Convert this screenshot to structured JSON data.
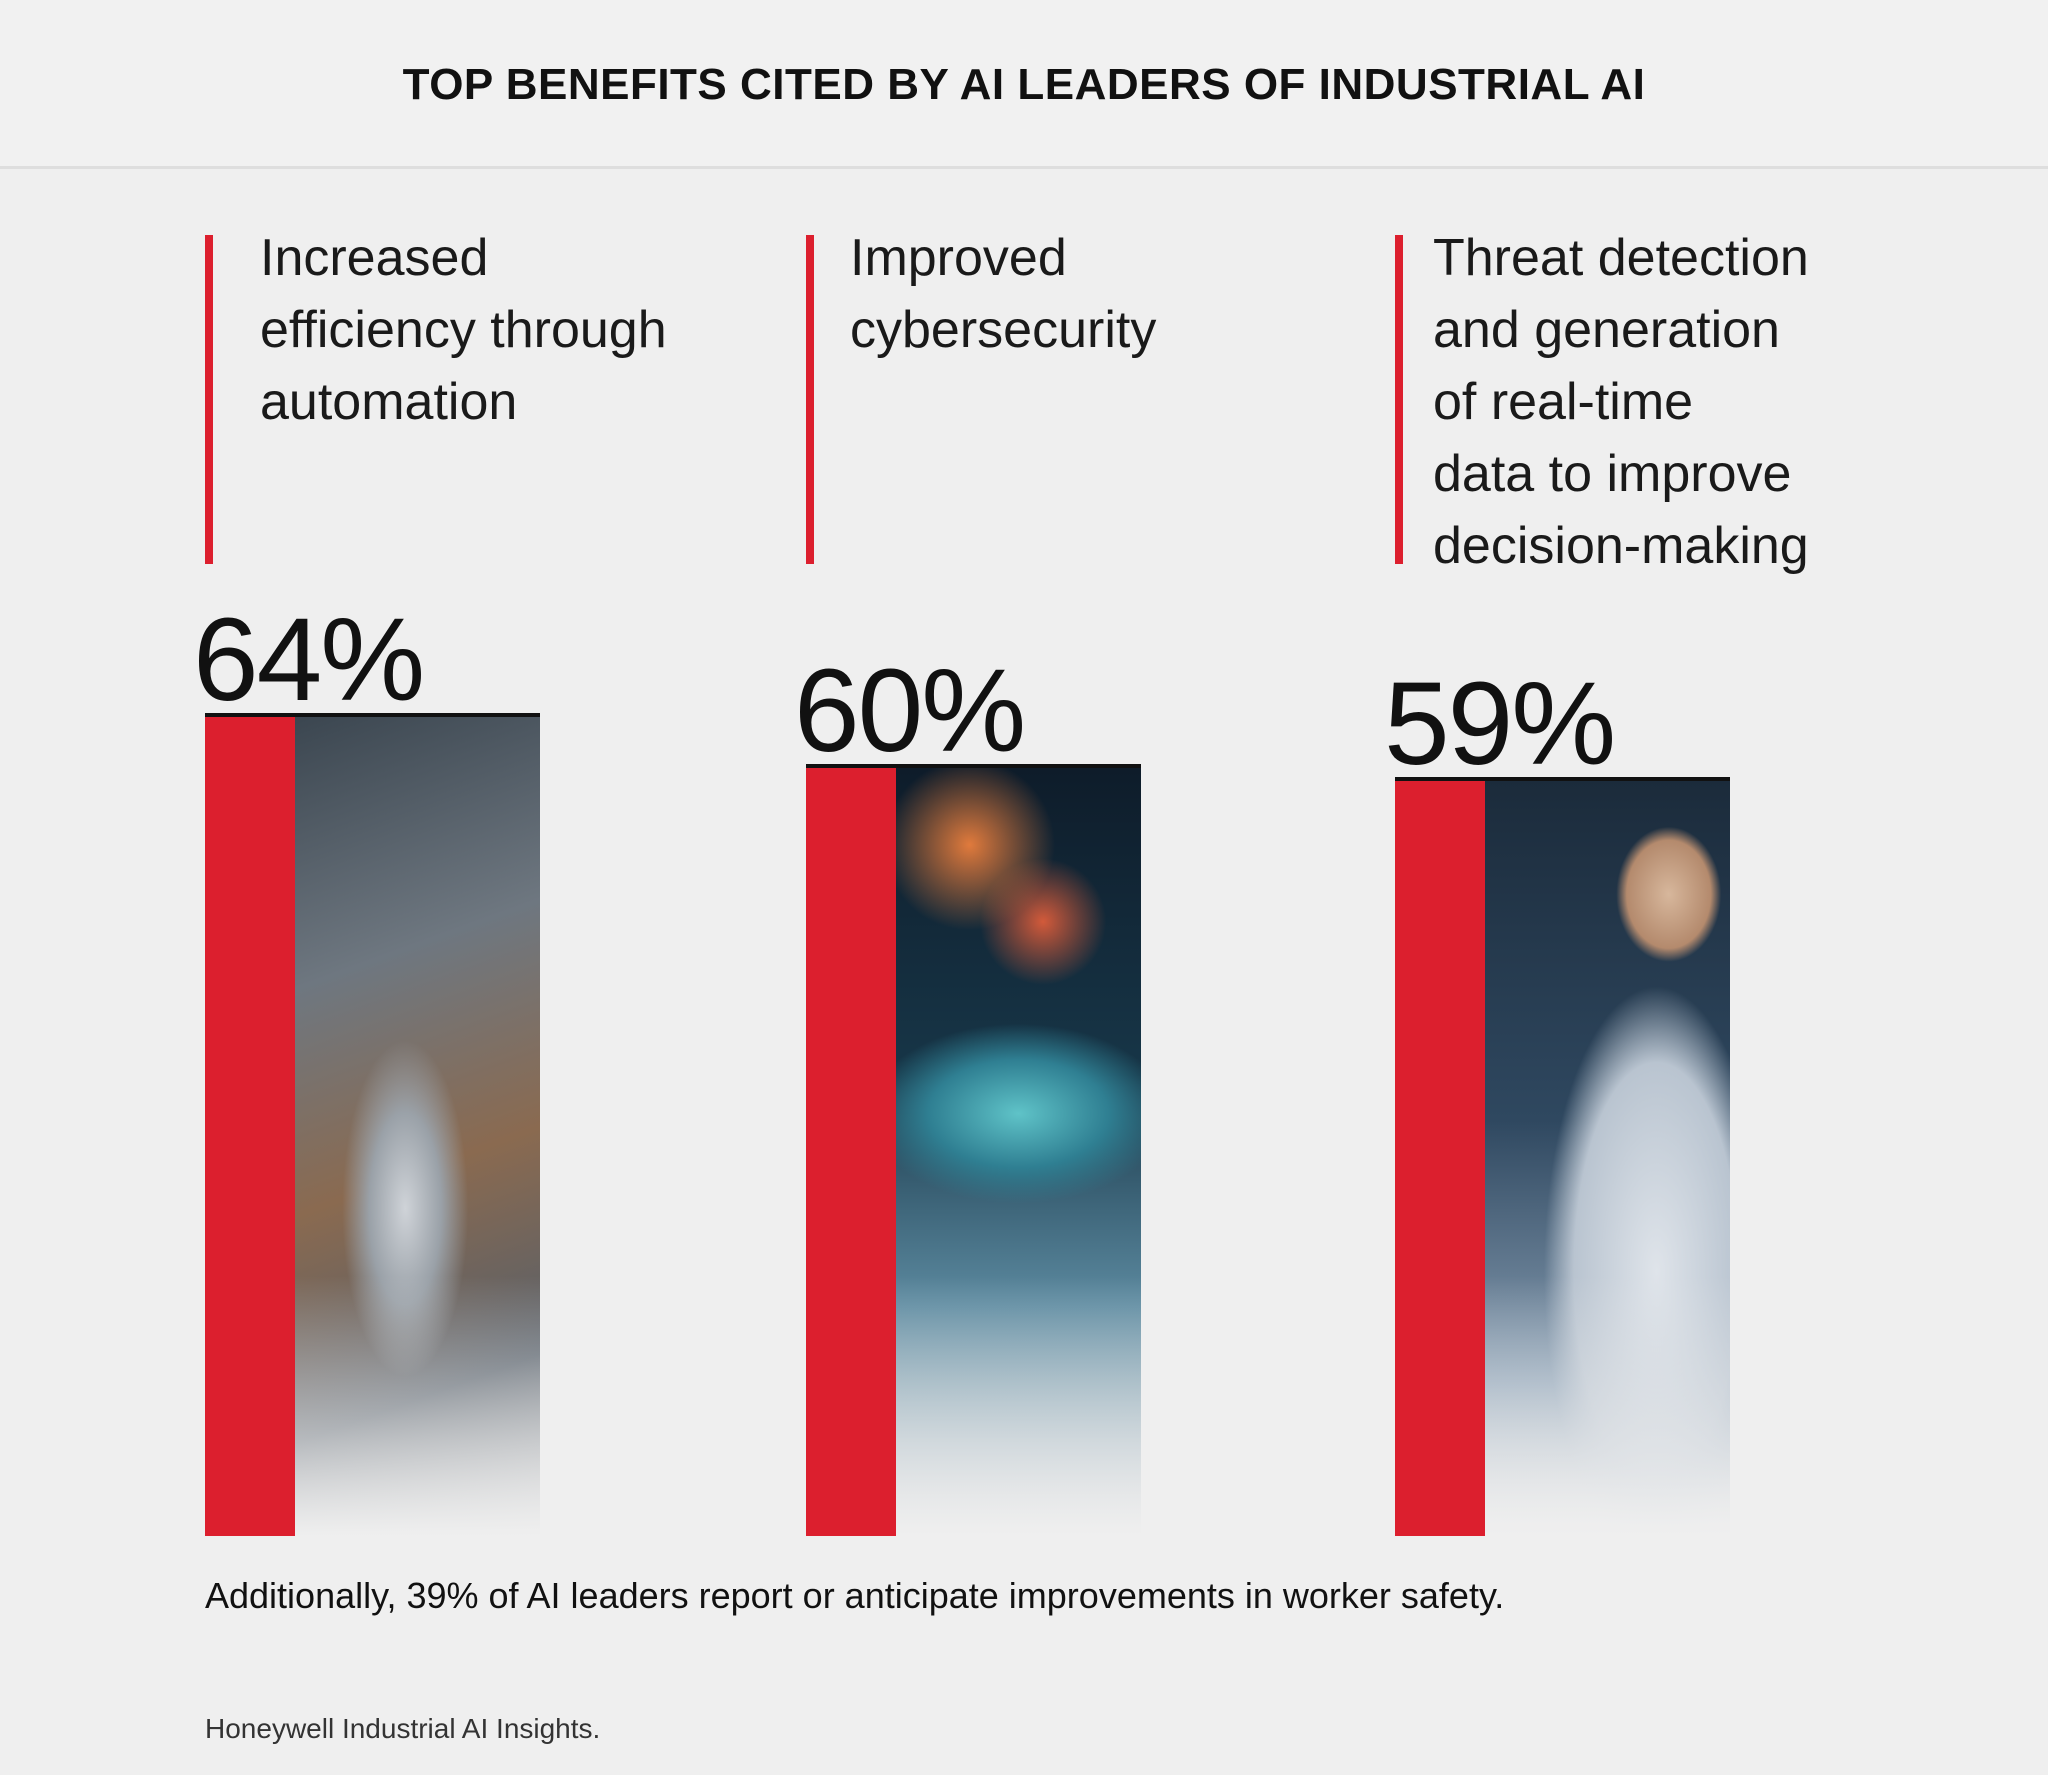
{
  "title": "TOP BENEFITS CITED BY AI LEADERS OF INDUSTRIAL AI",
  "colors": {
    "accent": "#dc1f2e",
    "background": "#efefef",
    "text": "#111111"
  },
  "chart_data": {
    "type": "bar",
    "title": "TOP BENEFITS CITED BY AI LEADERS OF INDUSTRIAL AI",
    "categories": [
      "Increased efficiency through automation",
      "Improved cybersecurity",
      "Threat detection and generation of real-time data to improve decision-making"
    ],
    "values": [
      64,
      60,
      59
    ],
    "value_labels": [
      "64%",
      "60%",
      "59%"
    ],
    "unit": "%",
    "bar_color": "#dc1f2e",
    "grid": false
  },
  "columns": [
    {
      "label_lines": [
        "Increased",
        "efficiency through",
        "automation"
      ],
      "value_label": "64%",
      "photo": "robotic-arm-photo"
    },
    {
      "label_lines": [
        "Improved",
        "cybersecurity"
      ],
      "value_label": "60%",
      "photo": "data-network-photo"
    },
    {
      "label_lines": [
        "Threat detection",
        "and generation",
        "of real-time",
        "data to improve",
        "decision-making"
      ],
      "value_label": "59%",
      "photo": "engineer-with-tablet-photo"
    }
  ],
  "footnote": "Additionally, 39% of AI leaders report or anticipate improvements in worker safety.",
  "source": "Honeywell Industrial AI Insights."
}
